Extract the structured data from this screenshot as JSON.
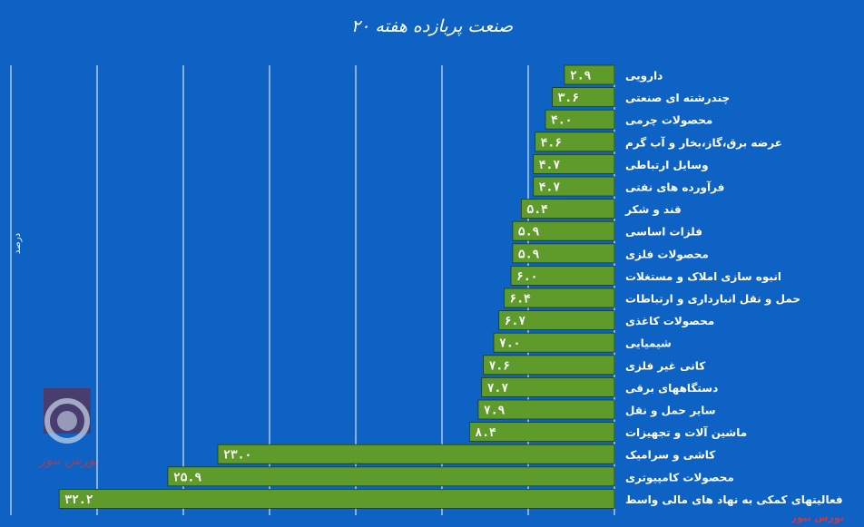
{
  "chart_data": {
    "type": "bar",
    "orientation": "horizontal",
    "title": "۲۰ صنعت پربازده هفته",
    "ylabel": "درصد",
    "xlim": [
      0,
      35
    ],
    "grid": true,
    "legend": "none",
    "bar_color": "#5e9b2b",
    "categories": [
      "دارویی",
      "چندرشته ای صنعتی",
      "محصولات چرمی",
      "عرضه برق،گاز،بخار و آب گرم",
      "وسایل ارتباطی",
      "فرآورده های نفتی",
      "قند و شکر",
      "فلزات اساسی",
      "محصولات فلزی",
      "انبوه سازی املاک و مستغلات",
      "حمل و نقل انبارداری و ارتباطات",
      "محصولات کاغذی",
      "شیمیایی",
      "کانی غیر فلزی",
      "دستگاههای برقی",
      "سایر حمل و نقل",
      "ماشین آلات و تجهیزات",
      "کاشی و سرامیک",
      "محصولات کامپیوتری",
      "فعالیتهای کمکی به نهاد های مالی واسط"
    ],
    "values": [
      2.9,
      3.6,
      4.0,
      4.6,
      4.7,
      4.7,
      5.4,
      5.9,
      5.9,
      6.0,
      6.4,
      6.7,
      7.0,
      7.6,
      7.7,
      7.9,
      8.4,
      23.0,
      25.9,
      32.2
    ],
    "value_labels": [
      "۲.۹",
      "۳.۶",
      "۴.۰",
      "۴.۶",
      "۴.۷",
      "۴.۷",
      "۵.۴",
      "۵.۹",
      "۵.۹",
      "۶.۰",
      "۶.۴",
      "۶.۷",
      "۷.۰",
      "۷.۶",
      "۷.۷",
      "۷.۹",
      "۸.۴",
      "۲۳.۰",
      "۲۵.۹",
      "۳۲.۲"
    ]
  },
  "watermark": "بورس نیوز",
  "logo_text": "بورس نیوز",
  "colors": {
    "background": "#0e62c3",
    "bar": "#5e9b2b",
    "grid": "#ffffff",
    "text": "#ffffff",
    "watermark": "#e4312f"
  }
}
